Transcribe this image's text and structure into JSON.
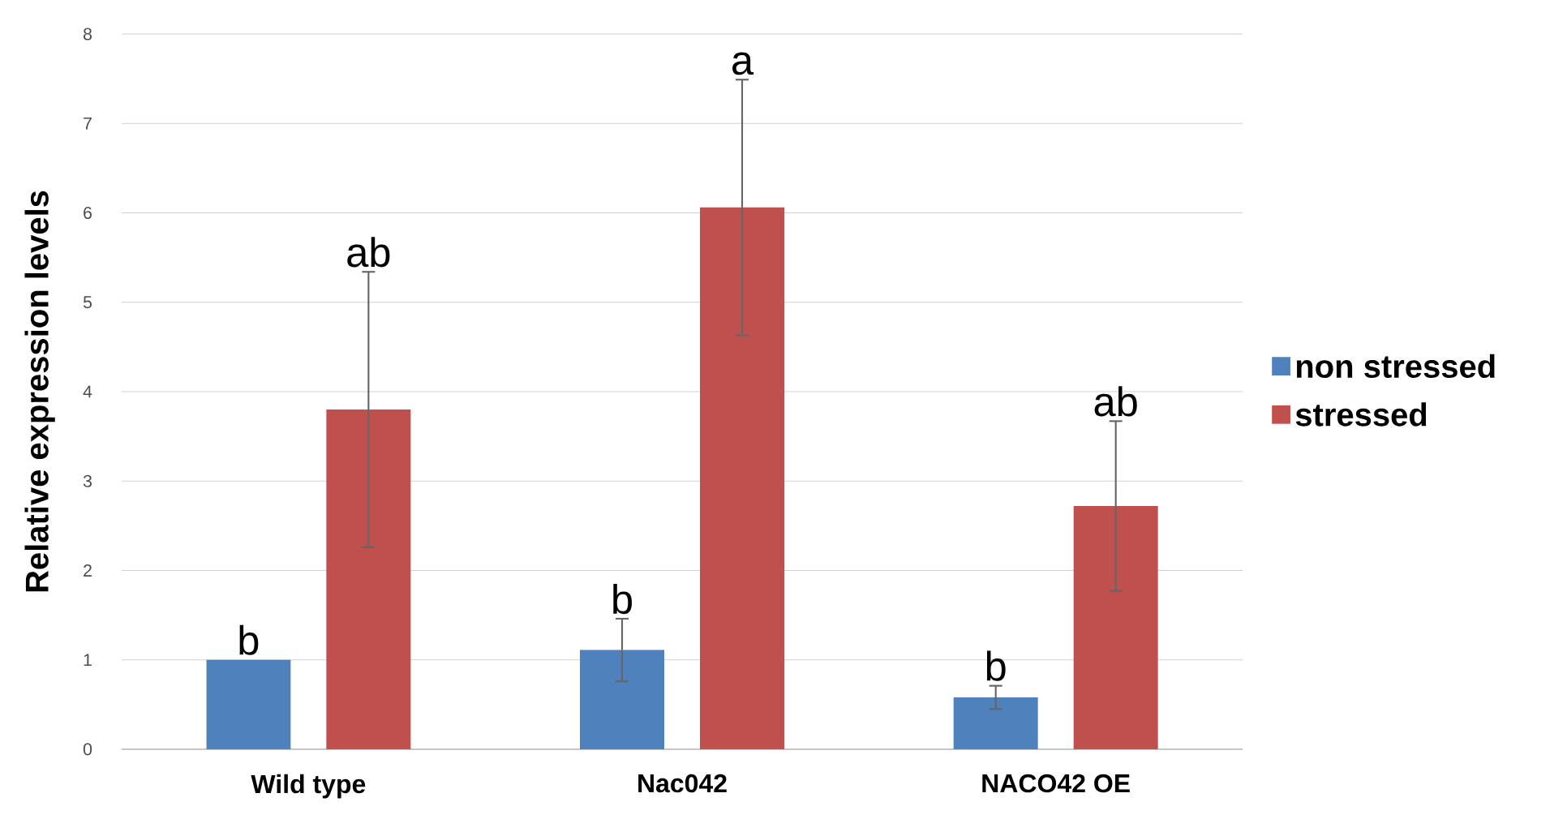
{
  "chart_data": {
    "type": "bar",
    "ylabel": "Relative expression levels",
    "categories": [
      "Wild type",
      "Nac042",
      "NACO42 OE"
    ],
    "series": [
      {
        "name": "non stressed",
        "color": "#4f81bd",
        "values": [
          1.0,
          1.11,
          0.58
        ],
        "errors": [
          null,
          0.35,
          0.13
        ]
      },
      {
        "name": "stressed",
        "color": "#c0504d",
        "values": [
          3.8,
          6.06,
          2.72
        ],
        "errors": [
          1.54,
          1.43,
          0.95
        ]
      }
    ],
    "ylim": [
      0,
      8
    ],
    "yticks": [
      0,
      1,
      2,
      3,
      4,
      5,
      6,
      7,
      8
    ],
    "grid": "y",
    "legend": "right",
    "annotations": [
      "b",
      "ab",
      "b",
      "a",
      "b",
      "ab"
    ]
  }
}
